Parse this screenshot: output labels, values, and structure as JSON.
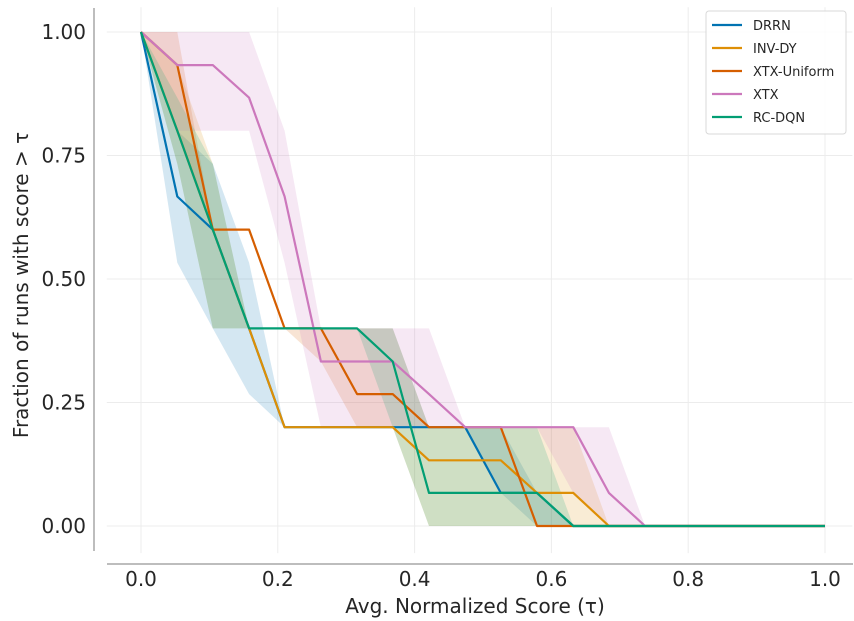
{
  "chart_data": {
    "type": "line",
    "xlabel": "Avg. Normalized Score (τ)",
    "ylabel": "Fraction of runs with score > τ",
    "xlim": [
      -0.05,
      1.04
    ],
    "ylim": [
      -0.055,
      1.05
    ],
    "x_ticks": [
      0.0,
      0.2,
      0.4,
      0.6,
      0.8,
      1.0
    ],
    "x_tick_labels": [
      "0.0",
      "0.2",
      "0.4",
      "0.6",
      "0.8",
      "1.0"
    ],
    "y_ticks": [
      0.0,
      0.25,
      0.5,
      0.75,
      1.0
    ],
    "y_tick_labels": [
      "0.00",
      "0.25",
      "0.50",
      "0.75",
      "1.00"
    ],
    "grid": true,
    "legend_position": "top-right",
    "series": [
      {
        "name": "DRRN",
        "color": "#0173b2",
        "x": [
          0.0,
          0.053,
          0.105,
          0.158,
          0.21,
          0.263,
          0.316,
          0.368,
          0.421,
          0.474,
          0.526,
          0.579,
          0.632,
          0.684,
          0.737,
          1.0
        ],
        "y": [
          1.0,
          0.667,
          0.6,
          0.4,
          0.2,
          0.2,
          0.2,
          0.2,
          0.2,
          0.2,
          0.067,
          0.067,
          0.0,
          0.0,
          0.0,
          0.0
        ],
        "lower": [
          1.0,
          0.533,
          0.4,
          0.267,
          0.2,
          0.2,
          0.2,
          0.2,
          0.2,
          0.2,
          0.067,
          0.0,
          0.0,
          0.0,
          0.0,
          0.0
        ],
        "upper": [
          1.0,
          0.8,
          0.733,
          0.533,
          0.2,
          0.2,
          0.2,
          0.2,
          0.2,
          0.2,
          0.2,
          0.067,
          0.0,
          0.0,
          0.0,
          0.0
        ]
      },
      {
        "name": "INV-DY",
        "color": "#de8f05",
        "x": [
          0.0,
          0.053,
          0.105,
          0.158,
          0.21,
          0.263,
          0.316,
          0.368,
          0.421,
          0.474,
          0.526,
          0.579,
          0.632,
          0.684,
          0.737,
          1.0
        ],
        "y": [
          1.0,
          0.8,
          0.6,
          0.4,
          0.2,
          0.2,
          0.2,
          0.2,
          0.133,
          0.133,
          0.133,
          0.067,
          0.067,
          0.0,
          0.0,
          0.0
        ],
        "lower": [
          1.0,
          0.733,
          0.4,
          0.4,
          0.2,
          0.2,
          0.2,
          0.2,
          0.0,
          0.0,
          0.0,
          0.0,
          0.0,
          0.0,
          0.0,
          0.0
        ],
        "upper": [
          1.0,
          0.933,
          0.733,
          0.4,
          0.2,
          0.2,
          0.2,
          0.2,
          0.2,
          0.2,
          0.2,
          0.2,
          0.2,
          0.0,
          0.0,
          0.0
        ]
      },
      {
        "name": "XTX-Uniform",
        "color": "#d55e00",
        "x": [
          0.0,
          0.053,
          0.105,
          0.158,
          0.21,
          0.263,
          0.316,
          0.368,
          0.421,
          0.474,
          0.526,
          0.579,
          0.632,
          0.684,
          0.737,
          1.0
        ],
        "y": [
          1.0,
          0.933,
          0.6,
          0.6,
          0.4,
          0.4,
          0.267,
          0.267,
          0.2,
          0.2,
          0.2,
          0.0,
          0.0,
          0.0,
          0.0,
          0.0
        ],
        "lower": [
          1.0,
          0.8,
          0.6,
          0.6,
          0.4,
          0.333,
          0.2,
          0.2,
          0.2,
          0.2,
          0.2,
          0.0,
          0.0,
          0.0,
          0.0,
          0.0
        ],
        "upper": [
          1.0,
          1.0,
          0.6,
          0.6,
          0.4,
          0.4,
          0.4,
          0.4,
          0.2,
          0.2,
          0.2,
          0.0,
          0.0,
          0.0,
          0.0,
          0.0
        ]
      },
      {
        "name": "XTX",
        "color": "#cc78bc",
        "x": [
          0.0,
          0.053,
          0.105,
          0.158,
          0.21,
          0.263,
          0.316,
          0.368,
          0.421,
          0.474,
          0.526,
          0.579,
          0.632,
          0.684,
          0.737,
          1.0
        ],
        "y": [
          1.0,
          0.933,
          0.933,
          0.867,
          0.667,
          0.333,
          0.333,
          0.333,
          0.267,
          0.2,
          0.2,
          0.2,
          0.2,
          0.067,
          0.0,
          0.0
        ],
        "lower": [
          1.0,
          0.8,
          0.8,
          0.8,
          0.533,
          0.2,
          0.2,
          0.2,
          0.2,
          0.2,
          0.2,
          0.2,
          0.067,
          0.0,
          0.0,
          0.0
        ],
        "upper": [
          1.0,
          1.0,
          1.0,
          1.0,
          0.8,
          0.4,
          0.4,
          0.4,
          0.4,
          0.2,
          0.2,
          0.2,
          0.2,
          0.2,
          0.0,
          0.0
        ]
      },
      {
        "name": "RC-DQN",
        "color": "#029e73",
        "x": [
          0.0,
          0.053,
          0.105,
          0.158,
          0.21,
          0.263,
          0.316,
          0.368,
          0.421,
          0.474,
          0.526,
          0.579,
          0.632,
          0.684,
          0.737,
          1.0
        ],
        "y": [
          1.0,
          0.8,
          0.6,
          0.4,
          0.4,
          0.4,
          0.4,
          0.333,
          0.067,
          0.067,
          0.067,
          0.067,
          0.0,
          0.0,
          0.0,
          0.0
        ],
        "lower": [
          1.0,
          0.733,
          0.4,
          0.4,
          0.4,
          0.4,
          0.4,
          0.2,
          0.0,
          0.0,
          0.0,
          0.0,
          0.0,
          0.0,
          0.0,
          0.0
        ],
        "upper": [
          1.0,
          0.867,
          0.733,
          0.4,
          0.4,
          0.4,
          0.4,
          0.4,
          0.2,
          0.2,
          0.2,
          0.2,
          0.0,
          0.0,
          0.0,
          0.0
        ]
      }
    ]
  }
}
